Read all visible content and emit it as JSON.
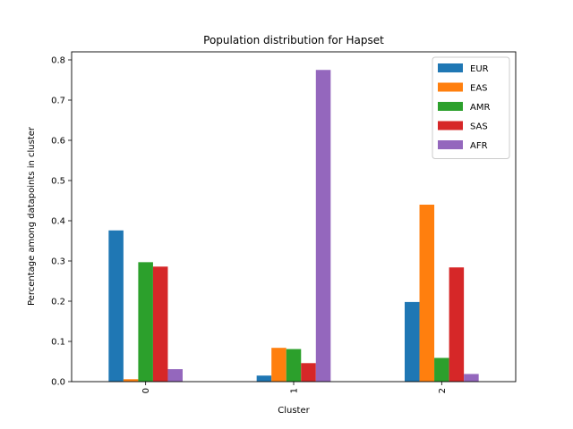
{
  "chart_data": {
    "type": "bar",
    "title": "Population distribution for Hapset",
    "xlabel": "Cluster",
    "ylabel": "Percentage among datapoints in cluster",
    "categories": [
      "0",
      "1",
      "2"
    ],
    "ylim": [
      0,
      0.82
    ],
    "yticks": [
      "0.0",
      "0.1",
      "0.2",
      "0.3",
      "0.4",
      "0.5",
      "0.6",
      "0.7",
      "0.8"
    ],
    "legend_position": "top-right",
    "grid": false,
    "series": [
      {
        "name": "EUR",
        "color": "#1f77b4",
        "values": [
          0.376,
          0.015,
          0.198
        ]
      },
      {
        "name": "EAS",
        "color": "#ff7f0e",
        "values": [
          0.006,
          0.084,
          0.44
        ]
      },
      {
        "name": "AMR",
        "color": "#2ca02c",
        "values": [
          0.297,
          0.081,
          0.059
        ]
      },
      {
        "name": "SAS",
        "color": "#d62728",
        "values": [
          0.286,
          0.046,
          0.284
        ]
      },
      {
        "name": "AFR",
        "color": "#9467bd",
        "values": [
          0.031,
          0.775,
          0.019
        ]
      }
    ]
  }
}
